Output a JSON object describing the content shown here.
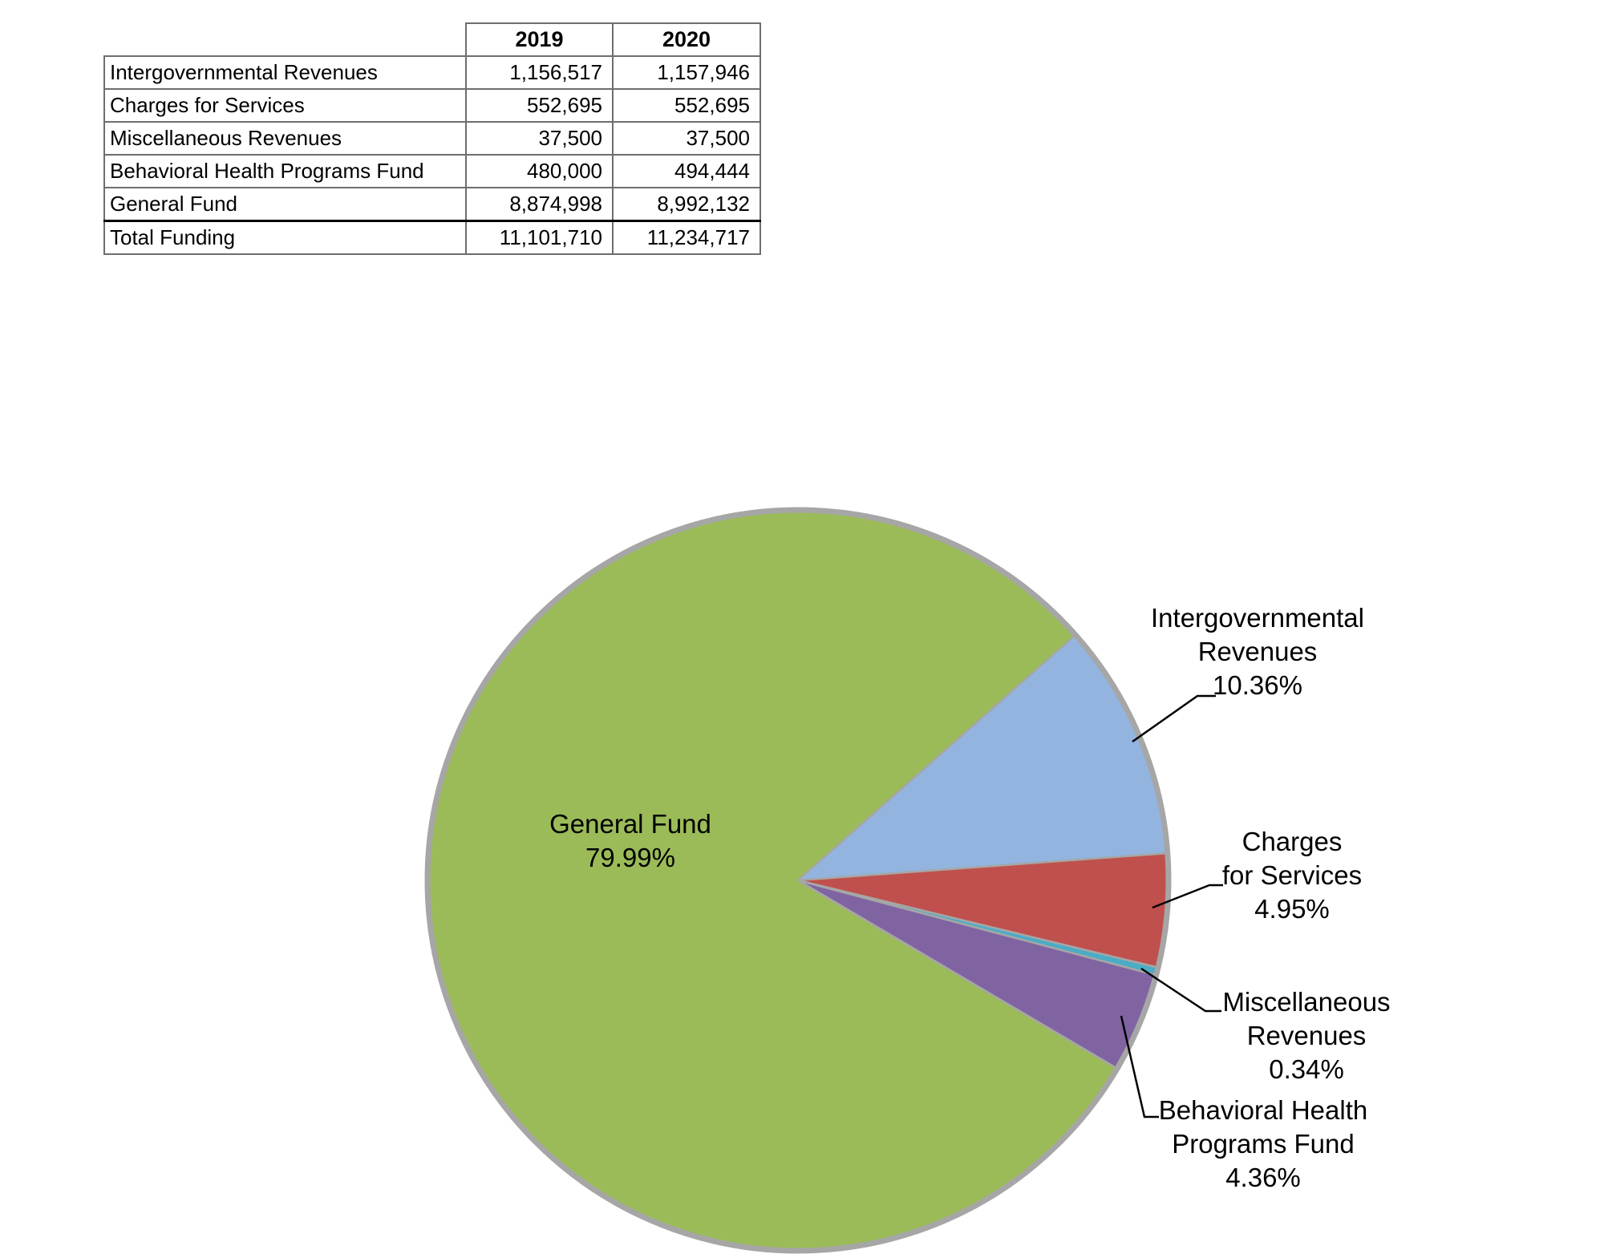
{
  "chart_data": [
    {
      "type": "table",
      "corner_header": "",
      "col_headers": [
        "2019",
        "2020"
      ],
      "rows": [
        {
          "label": "Intergovernmental Revenues",
          "values": [
            "1,156,517",
            "1,157,946"
          ]
        },
        {
          "label": "Charges for Services",
          "values": [
            "552,695",
            "552,695"
          ]
        },
        {
          "label": "Miscellaneous Revenues",
          "values": [
            "37,500",
            "37,500"
          ]
        },
        {
          "label": "Behavioral Health Programs Fund",
          "values": [
            "480,000",
            "494,444"
          ]
        },
        {
          "label": "General Fund",
          "values": [
            "8,874,998",
            "8,992,132"
          ]
        },
        {
          "label": "Total Funding",
          "values": [
            "11,101,710",
            "11,234,717"
          ],
          "total": true
        }
      ]
    },
    {
      "type": "pie",
      "title": "",
      "start_angle_deg": 41.5,
      "direction": "clockwise",
      "outline_color": "#A6A6A6",
      "leader_line_color": "#000000",
      "slices": [
        {
          "label": "Intergovernmental Revenues",
          "pct": 10.36,
          "pct_label": "10.36%",
          "color": "#92B4DF",
          "label_lines": [
            "Intergovernmental",
            "Revenues",
            "10.36%"
          ]
        },
        {
          "label": "Charges for Services",
          "pct": 4.95,
          "pct_label": "4.95%",
          "color": "#C0504D",
          "label_lines": [
            "Charges",
            "for Services",
            "4.95%"
          ]
        },
        {
          "label": "Miscellaneous Revenues",
          "pct": 0.34,
          "pct_label": "0.34%",
          "color": "#4BACC6",
          "label_lines": [
            "Miscellaneous",
            "Revenues",
            "0.34%"
          ]
        },
        {
          "label": "Behavioral Health Programs Fund",
          "pct": 4.36,
          "pct_label": "4.36%",
          "color": "#8064A2",
          "label_lines": [
            "Behavioral Health",
            "Programs Fund",
            "4.36%"
          ]
        },
        {
          "label": "General Fund",
          "pct": 79.99,
          "pct_label": "79.99%",
          "color": "#9BBB59",
          "label_lines": [
            "General Fund",
            "79.99%"
          ]
        }
      ]
    }
  ]
}
